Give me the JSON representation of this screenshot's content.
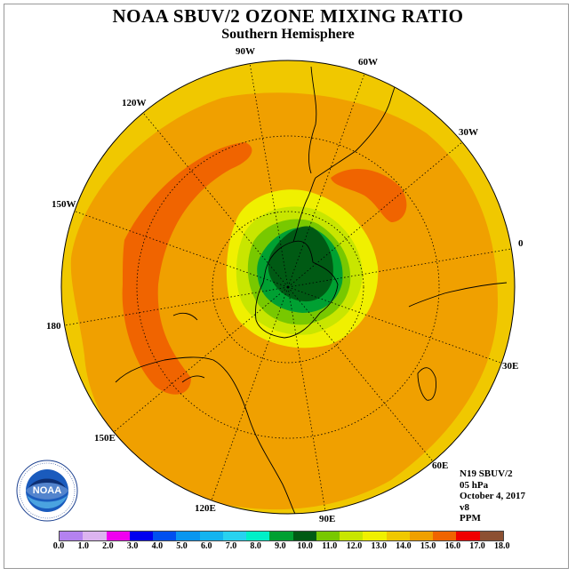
{
  "title": "NOAA SBUV/2 OZONE MIXING RATIO",
  "subtitle": "Southern Hemisphere",
  "longitude_labels": {
    "w90": "90W",
    "w60": "60W",
    "w30": "30W",
    "w120": "120W",
    "w150": "150W",
    "lon0": "0",
    "lon180": "180",
    "e30": "30E",
    "e60": "60E",
    "e90": "90E",
    "e120": "120E",
    "e150": "150E"
  },
  "info": {
    "satellite": "N19 SBUV/2",
    "level": "05 hPa",
    "date": "October 4, 2017",
    "version": "v8",
    "units": "PPM"
  },
  "logo": {
    "text": "NOAA",
    "icon": "noaa-logo-icon"
  },
  "colorbar": {
    "ticks": [
      "0.0",
      "1.0",
      "2.0",
      "3.0",
      "4.0",
      "5.0",
      "6.0",
      "7.0",
      "8.0",
      "9.0",
      "10.0",
      "11.0",
      "12.0",
      "13.0",
      "14.0",
      "15.0",
      "16.0",
      "17.0",
      "18.0"
    ],
    "colors": [
      "#b482f0",
      "#dcb4f0",
      "#f000f0",
      "#0000f0",
      "#0050f0",
      "#0a96f0",
      "#14b4f0",
      "#28d2f0",
      "#00f0c8",
      "#00a032",
      "#005a14",
      "#78c800",
      "#c8e600",
      "#f0f000",
      "#f0c800",
      "#f0a000",
      "#f06400",
      "#f00000",
      "#8c5032"
    ]
  },
  "map_colors": {
    "outer": "#f0c800",
    "level15": "#f0a000",
    "level16": "#f06400",
    "level13": "#f0f000",
    "level12": "#c8e600",
    "level11": "#78c800",
    "level10": "#00a032",
    "level9": "#005a14"
  }
}
